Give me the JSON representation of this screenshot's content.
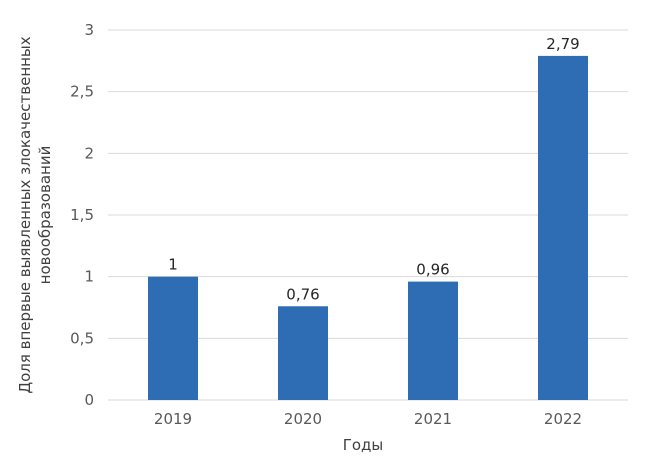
{
  "chart_data": {
    "type": "bar",
    "categories": [
      "2019",
      "2020",
      "2021",
      "2022"
    ],
    "values": [
      1,
      0.76,
      0.96,
      2.79
    ],
    "data_labels": [
      "1",
      "0,76",
      "0,96",
      "2,79"
    ],
    "ylabel_line1": "Доля впервые выявленных злокачественных",
    "ylabel_line2": "новообразований",
    "xlabel": "Годы",
    "ylim": [
      0,
      3
    ],
    "yticks": [
      0,
      0.5,
      1,
      1.5,
      2,
      2.5,
      3
    ],
    "ytick_labels": [
      "0",
      "0,5",
      "1",
      "1,5",
      "2",
      "2,5",
      "3"
    ],
    "grid": true,
    "bar_color": "#2E6DB4",
    "grid_color": "#D9D9D9"
  }
}
